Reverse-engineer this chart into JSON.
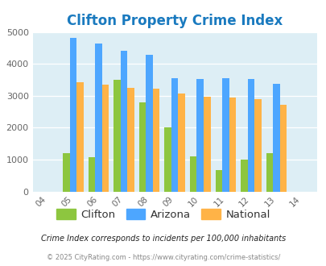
{
  "title": "Clifton Property Crime Index",
  "all_years": [
    "04",
    "05",
    "06",
    "07",
    "08",
    "09",
    "10",
    "11",
    "12",
    "13",
    "14"
  ],
  "data_year_indices": [
    1,
    2,
    3,
    4,
    5,
    6,
    7,
    8,
    9
  ],
  "clifton": [
    1200,
    1080,
    3500,
    2800,
    2000,
    1100,
    680,
    1000,
    1200
  ],
  "arizona": [
    4820,
    4630,
    4400,
    4280,
    3560,
    3530,
    3560,
    3530,
    3380
  ],
  "national": [
    3430,
    3350,
    3250,
    3210,
    3060,
    2960,
    2950,
    2890,
    2720
  ],
  "clifton_color": "#8dc63f",
  "arizona_color": "#4da6ff",
  "national_color": "#ffb347",
  "background_color": "#ddeef5",
  "title_color": "#1a7abf",
  "ylim": [
    0,
    5000
  ],
  "yticks": [
    0,
    1000,
    2000,
    3000,
    4000,
    5000
  ],
  "bar_width": 0.27,
  "legend_labels": [
    "Clifton",
    "Arizona",
    "National"
  ],
  "footnote1": "Crime Index corresponds to incidents per 100,000 inhabitants",
  "footnote2": "© 2025 CityRating.com - https://www.cityrating.com/crime-statistics/",
  "footnote1_color": "#222222",
  "footnote2_color": "#888888"
}
